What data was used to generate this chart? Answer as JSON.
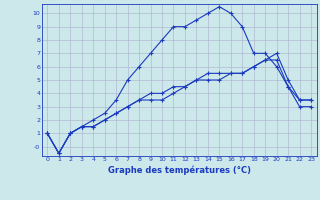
{
  "xlabel": "Graphe des températures (°C)",
  "x": [
    0,
    1,
    2,
    3,
    4,
    5,
    6,
    7,
    8,
    9,
    10,
    11,
    12,
    13,
    14,
    15,
    16,
    17,
    18,
    19,
    20,
    21,
    22,
    23
  ],
  "line1": [
    1,
    -0.5,
    1,
    1.5,
    1.5,
    2,
    2.5,
    3,
    3.5,
    3.5,
    3.5,
    4,
    4.5,
    5,
    5,
    5,
    5.5,
    5.5,
    6,
    6.5,
    6.5,
    4.5,
    3.5,
    3.5
  ],
  "line2": [
    1,
    -0.5,
    1,
    1.5,
    2,
    2.5,
    3.5,
    5,
    6,
    7,
    8,
    9,
    9,
    9.5,
    10,
    10.5,
    10,
    9,
    7,
    7,
    6,
    4.5,
    3,
    3
  ],
  "line3": [
    1,
    -0.5,
    1,
    1.5,
    1.5,
    2,
    2.5,
    3,
    3.5,
    4,
    4,
    4.5,
    4.5,
    5,
    5.5,
    5.5,
    5.5,
    5.5,
    6,
    6.5,
    7,
    5,
    3.5,
    3.5
  ],
  "line_color": "#1a3abf",
  "bg_color": "#cce8ea",
  "grid_color": "#aab0cc",
  "ylim": [
    -0.7,
    10.7
  ],
  "xlim": [
    -0.5,
    23.5
  ],
  "yticks": [
    0,
    1,
    2,
    3,
    4,
    5,
    6,
    7,
    8,
    9,
    10
  ],
  "ytick_labels": [
    "-0",
    "1",
    "2",
    "3",
    "4",
    "5",
    "6",
    "7",
    "8",
    "9",
    "10"
  ],
  "xticks": [
    0,
    1,
    2,
    3,
    4,
    5,
    6,
    7,
    8,
    9,
    10,
    11,
    12,
    13,
    14,
    15,
    16,
    17,
    18,
    19,
    20,
    21,
    22,
    23
  ]
}
